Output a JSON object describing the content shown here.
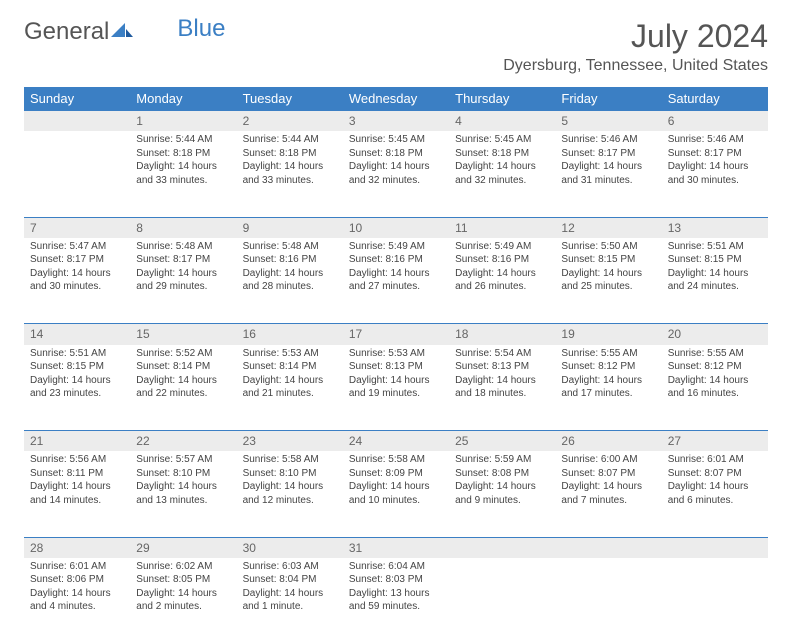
{
  "brand": {
    "part1": "General",
    "part2": "Blue"
  },
  "title": "July 2024",
  "location": "Dyersburg, Tennessee, United States",
  "day_headers": [
    "Sunday",
    "Monday",
    "Tuesday",
    "Wednesday",
    "Thursday",
    "Friday",
    "Saturday"
  ],
  "colors": {
    "header_bg": "#3b7fc4",
    "header_text": "#ffffff",
    "daynum_bg": "#ececec",
    "border": "#3b7fc4",
    "text": "#444444"
  },
  "weeks": [
    [
      null,
      {
        "n": "1",
        "sr": "Sunrise: 5:44 AM",
        "ss": "Sunset: 8:18 PM",
        "d1": "Daylight: 14 hours",
        "d2": "and 33 minutes."
      },
      {
        "n": "2",
        "sr": "Sunrise: 5:44 AM",
        "ss": "Sunset: 8:18 PM",
        "d1": "Daylight: 14 hours",
        "d2": "and 33 minutes."
      },
      {
        "n": "3",
        "sr": "Sunrise: 5:45 AM",
        "ss": "Sunset: 8:18 PM",
        "d1": "Daylight: 14 hours",
        "d2": "and 32 minutes."
      },
      {
        "n": "4",
        "sr": "Sunrise: 5:45 AM",
        "ss": "Sunset: 8:18 PM",
        "d1": "Daylight: 14 hours",
        "d2": "and 32 minutes."
      },
      {
        "n": "5",
        "sr": "Sunrise: 5:46 AM",
        "ss": "Sunset: 8:17 PM",
        "d1": "Daylight: 14 hours",
        "d2": "and 31 minutes."
      },
      {
        "n": "6",
        "sr": "Sunrise: 5:46 AM",
        "ss": "Sunset: 8:17 PM",
        "d1": "Daylight: 14 hours",
        "d2": "and 30 minutes."
      }
    ],
    [
      {
        "n": "7",
        "sr": "Sunrise: 5:47 AM",
        "ss": "Sunset: 8:17 PM",
        "d1": "Daylight: 14 hours",
        "d2": "and 30 minutes."
      },
      {
        "n": "8",
        "sr": "Sunrise: 5:48 AM",
        "ss": "Sunset: 8:17 PM",
        "d1": "Daylight: 14 hours",
        "d2": "and 29 minutes."
      },
      {
        "n": "9",
        "sr": "Sunrise: 5:48 AM",
        "ss": "Sunset: 8:16 PM",
        "d1": "Daylight: 14 hours",
        "d2": "and 28 minutes."
      },
      {
        "n": "10",
        "sr": "Sunrise: 5:49 AM",
        "ss": "Sunset: 8:16 PM",
        "d1": "Daylight: 14 hours",
        "d2": "and 27 minutes."
      },
      {
        "n": "11",
        "sr": "Sunrise: 5:49 AM",
        "ss": "Sunset: 8:16 PM",
        "d1": "Daylight: 14 hours",
        "d2": "and 26 minutes."
      },
      {
        "n": "12",
        "sr": "Sunrise: 5:50 AM",
        "ss": "Sunset: 8:15 PM",
        "d1": "Daylight: 14 hours",
        "d2": "and 25 minutes."
      },
      {
        "n": "13",
        "sr": "Sunrise: 5:51 AM",
        "ss": "Sunset: 8:15 PM",
        "d1": "Daylight: 14 hours",
        "d2": "and 24 minutes."
      }
    ],
    [
      {
        "n": "14",
        "sr": "Sunrise: 5:51 AM",
        "ss": "Sunset: 8:15 PM",
        "d1": "Daylight: 14 hours",
        "d2": "and 23 minutes."
      },
      {
        "n": "15",
        "sr": "Sunrise: 5:52 AM",
        "ss": "Sunset: 8:14 PM",
        "d1": "Daylight: 14 hours",
        "d2": "and 22 minutes."
      },
      {
        "n": "16",
        "sr": "Sunrise: 5:53 AM",
        "ss": "Sunset: 8:14 PM",
        "d1": "Daylight: 14 hours",
        "d2": "and 21 minutes."
      },
      {
        "n": "17",
        "sr": "Sunrise: 5:53 AM",
        "ss": "Sunset: 8:13 PM",
        "d1": "Daylight: 14 hours",
        "d2": "and 19 minutes."
      },
      {
        "n": "18",
        "sr": "Sunrise: 5:54 AM",
        "ss": "Sunset: 8:13 PM",
        "d1": "Daylight: 14 hours",
        "d2": "and 18 minutes."
      },
      {
        "n": "19",
        "sr": "Sunrise: 5:55 AM",
        "ss": "Sunset: 8:12 PM",
        "d1": "Daylight: 14 hours",
        "d2": "and 17 minutes."
      },
      {
        "n": "20",
        "sr": "Sunrise: 5:55 AM",
        "ss": "Sunset: 8:12 PM",
        "d1": "Daylight: 14 hours",
        "d2": "and 16 minutes."
      }
    ],
    [
      {
        "n": "21",
        "sr": "Sunrise: 5:56 AM",
        "ss": "Sunset: 8:11 PM",
        "d1": "Daylight: 14 hours",
        "d2": "and 14 minutes."
      },
      {
        "n": "22",
        "sr": "Sunrise: 5:57 AM",
        "ss": "Sunset: 8:10 PM",
        "d1": "Daylight: 14 hours",
        "d2": "and 13 minutes."
      },
      {
        "n": "23",
        "sr": "Sunrise: 5:58 AM",
        "ss": "Sunset: 8:10 PM",
        "d1": "Daylight: 14 hours",
        "d2": "and 12 minutes."
      },
      {
        "n": "24",
        "sr": "Sunrise: 5:58 AM",
        "ss": "Sunset: 8:09 PM",
        "d1": "Daylight: 14 hours",
        "d2": "and 10 minutes."
      },
      {
        "n": "25",
        "sr": "Sunrise: 5:59 AM",
        "ss": "Sunset: 8:08 PM",
        "d1": "Daylight: 14 hours",
        "d2": "and 9 minutes."
      },
      {
        "n": "26",
        "sr": "Sunrise: 6:00 AM",
        "ss": "Sunset: 8:07 PM",
        "d1": "Daylight: 14 hours",
        "d2": "and 7 minutes."
      },
      {
        "n": "27",
        "sr": "Sunrise: 6:01 AM",
        "ss": "Sunset: 8:07 PM",
        "d1": "Daylight: 14 hours",
        "d2": "and 6 minutes."
      }
    ],
    [
      {
        "n": "28",
        "sr": "Sunrise: 6:01 AM",
        "ss": "Sunset: 8:06 PM",
        "d1": "Daylight: 14 hours",
        "d2": "and 4 minutes."
      },
      {
        "n": "29",
        "sr": "Sunrise: 6:02 AM",
        "ss": "Sunset: 8:05 PM",
        "d1": "Daylight: 14 hours",
        "d2": "and 2 minutes."
      },
      {
        "n": "30",
        "sr": "Sunrise: 6:03 AM",
        "ss": "Sunset: 8:04 PM",
        "d1": "Daylight: 14 hours",
        "d2": "and 1 minute."
      },
      {
        "n": "31",
        "sr": "Sunrise: 6:04 AM",
        "ss": "Sunset: 8:03 PM",
        "d1": "Daylight: 13 hours",
        "d2": "and 59 minutes."
      },
      null,
      null,
      null
    ]
  ]
}
